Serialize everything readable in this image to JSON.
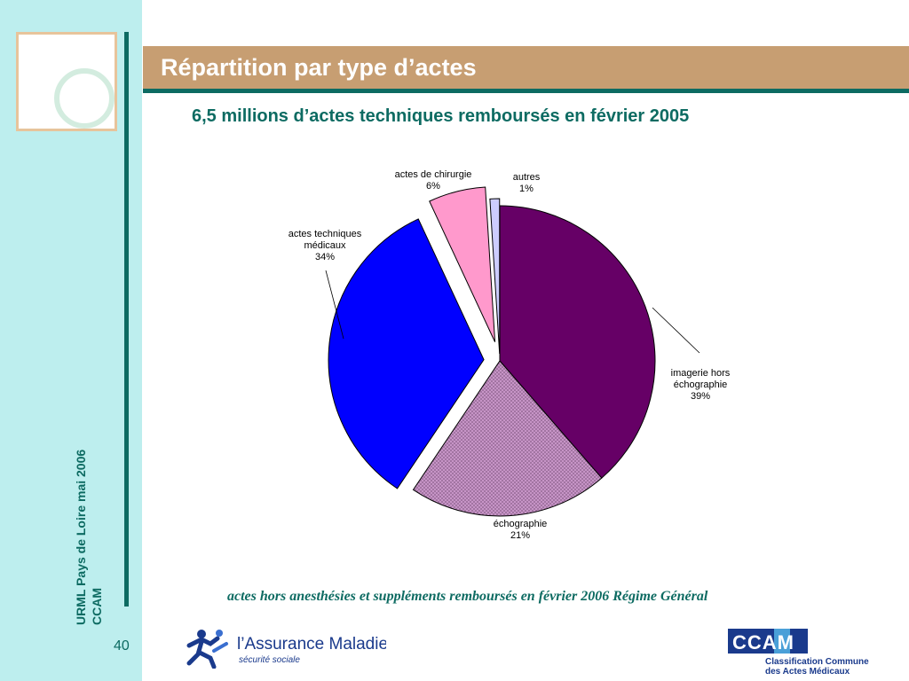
{
  "sidebar": {
    "line1": "URML Pays de Loire mai 2006",
    "line2": "CCAM",
    "page_number": "40"
  },
  "slide": {
    "title": "Répartition par type d’actes",
    "subtitle": "6,5 millions d’actes techniques remboursés en février 2005",
    "footnote": "actes hors anesthésies et suppléments remboursés en février 2006 Régime Général"
  },
  "logos": {
    "assurance_name": "l’Assurance Maladie",
    "assurance_sub": "sécurité sociale",
    "ccam_letters": "CCAM",
    "ccam_line1": "Classification Commune",
    "ccam_line2": "des Actes Médicaux"
  },
  "colors": {
    "teal": "#0d6b62",
    "title_bar": "#c79e72",
    "sidebar": "#bdeeee"
  },
  "chart_data": {
    "type": "pie",
    "slices": [
      {
        "label_lines": [
          "imagerie hors",
          "échographie"
        ],
        "value": 39,
        "display": "39%",
        "color": "#660066",
        "pattern": "solid"
      },
      {
        "label_lines": [
          "échographie"
        ],
        "value": 21,
        "display": "21%",
        "color": "#cc99cc",
        "pattern": "hatched"
      },
      {
        "label_lines": [
          "actes techniques",
          "médicaux"
        ],
        "value": 34,
        "display": "34%",
        "color": "#0000ff",
        "pattern": "solid"
      },
      {
        "label_lines": [
          "actes de chirurgie"
        ],
        "value": 6,
        "display": "6%",
        "color": "#ff99cc",
        "pattern": "solid"
      },
      {
        "label_lines": [
          "autres"
        ],
        "value": 1,
        "display": "1%",
        "color": "#ccccff",
        "pattern": "solid"
      }
    ]
  }
}
